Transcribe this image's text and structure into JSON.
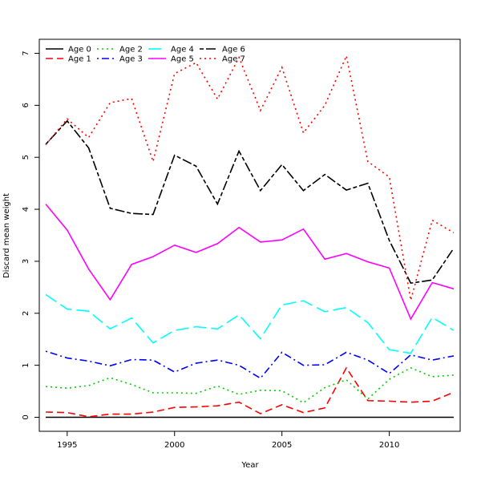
{
  "chart_data": {
    "type": "line",
    "title": "",
    "xlabel": "Year",
    "ylabel": "Discard mean weight",
    "xlim": [
      1993.7,
      2013.3
    ],
    "ylim": [
      -0.27,
      7.27
    ],
    "xticks": [
      1995,
      2000,
      2005,
      2010
    ],
    "yticks": [
      0,
      1,
      2,
      3,
      4,
      5,
      6,
      7
    ],
    "legend_position": "top-left",
    "x": [
      1994,
      1995,
      1996,
      1997,
      1998,
      1999,
      2000,
      2001,
      2002,
      2003,
      2004,
      2005,
      2006,
      2007,
      2008,
      2009,
      2010,
      2011,
      2012,
      2013
    ],
    "series": [
      {
        "name": "Age 0",
        "color": "#000000",
        "dash": "solid",
        "values": [
          0,
          0,
          0,
          0,
          0,
          0,
          0,
          0,
          0,
          0,
          0,
          0,
          0,
          0,
          0,
          0,
          0,
          0,
          0,
          0
        ]
      },
      {
        "name": "Age 1",
        "color": "#ff0000",
        "dash": "dashed",
        "values": [
          0.1,
          0.09,
          0.01,
          0.06,
          0.06,
          0.1,
          0.19,
          0.2,
          0.22,
          0.29,
          0.07,
          0.24,
          0.09,
          0.18,
          0.95,
          0.32,
          0.31,
          0.29,
          0.31,
          0.48
        ]
      },
      {
        "name": "Age 2",
        "color": "#00cd00",
        "dash": "dotted",
        "values": [
          0.59,
          0.56,
          0.61,
          0.76,
          0.63,
          0.47,
          0.47,
          0.46,
          0.6,
          0.44,
          0.52,
          0.51,
          0.28,
          0.57,
          0.72,
          0.35,
          0.73,
          0.95,
          0.78,
          0.81
        ]
      },
      {
        "name": "Age 3",
        "color": "#0000ff",
        "dash": "dotdash",
        "values": [
          1.27,
          1.14,
          1.08,
          0.99,
          1.11,
          1.1,
          0.87,
          1.04,
          1.1,
          1.0,
          0.75,
          1.25,
          1.0,
          1.01,
          1.25,
          1.1,
          0.84,
          1.2,
          1.1,
          1.18
        ]
      },
      {
        "name": "Age 4",
        "color": "#00ffff",
        "dash": "longdash",
        "values": [
          2.36,
          2.08,
          2.04,
          1.7,
          1.91,
          1.43,
          1.67,
          1.74,
          1.7,
          1.97,
          1.51,
          2.16,
          2.24,
          2.03,
          2.11,
          1.82,
          1.3,
          1.23,
          1.92,
          1.67
        ]
      },
      {
        "name": "Age 5",
        "color": "#ff00ff",
        "dash": "solid",
        "values": [
          4.1,
          3.6,
          2.85,
          2.26,
          2.94,
          3.09,
          3.31,
          3.17,
          3.34,
          3.65,
          3.37,
          3.41,
          3.62,
          3.04,
          3.15,
          2.99,
          2.87,
          1.89,
          2.59,
          2.47
        ]
      },
      {
        "name": "Age 6",
        "color": "#000000",
        "dash": "twodash",
        "values": [
          5.25,
          5.7,
          5.18,
          4.02,
          3.92,
          3.9,
          5.04,
          4.83,
          4.1,
          5.12,
          4.36,
          4.86,
          4.36,
          4.67,
          4.37,
          4.5,
          3.4,
          2.58,
          2.64,
          3.25
        ]
      },
      {
        "name": "Age 7",
        "color": "#ff0000",
        "dash": "dotted",
        "values": [
          5.24,
          5.74,
          5.38,
          6.05,
          6.13,
          4.92,
          6.61,
          6.82,
          6.12,
          6.92,
          5.9,
          6.73,
          5.47,
          6.0,
          6.95,
          4.92,
          4.62,
          2.25,
          3.79,
          3.55
        ]
      }
    ]
  }
}
